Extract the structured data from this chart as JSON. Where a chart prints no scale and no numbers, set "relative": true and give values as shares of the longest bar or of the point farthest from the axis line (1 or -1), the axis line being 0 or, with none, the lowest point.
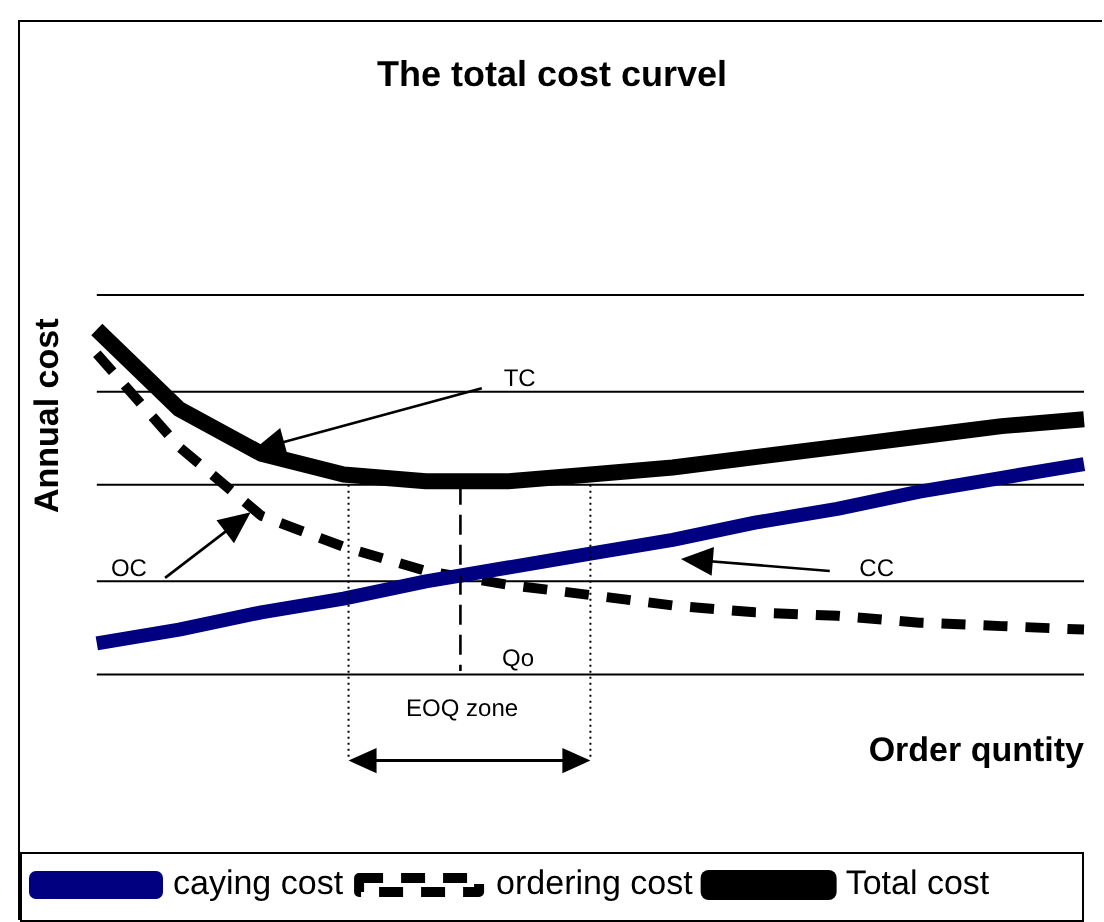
{
  "chart_data": {
    "type": "line",
    "title": "The total cost curvel",
    "xlabel": "Order quntity",
    "ylabel": "Annual cost",
    "relative": true,
    "ref_lines": [
      {
        "axis": "y",
        "value": 0,
        "color": "#000000"
      },
      {
        "axis": "y",
        "value": 0.27,
        "color": "#000000"
      },
      {
        "axis": "y",
        "value": 0.55,
        "color": "#000000"
      },
      {
        "axis": "y",
        "value": 0.82,
        "color": "#000000"
      },
      {
        "axis": "y",
        "value": 1.1,
        "color": "#000000"
      }
    ],
    "legend": "bottom",
    "marker": "none",
    "categories": [
      null,
      null,
      null,
      null,
      null,
      null,
      null,
      null,
      null,
      null,
      null,
      null,
      null
    ],
    "series": [
      {
        "name": "caying cost",
        "color": "#000080",
        "line_style": "solid",
        "values": [
          0.09,
          0.13,
          0.18,
          0.22,
          0.27,
          0.31,
          0.35,
          0.39,
          0.44,
          0.48,
          0.53,
          0.57,
          0.61
        ]
      },
      {
        "name": "ordering cost",
        "color": "#000000",
        "line_style": "dashed",
        "values": [
          0.93,
          0.66,
          0.46,
          0.37,
          0.3,
          0.26,
          0.23,
          0.2,
          0.18,
          0.17,
          0.15,
          0.14,
          0.13
        ]
      },
      {
        "name": "Total cost",
        "color": "#000000",
        "line_style": "solid",
        "values": [
          1.0,
          0.77,
          0.64,
          0.58,
          0.56,
          0.56,
          0.58,
          0.6,
          0.63,
          0.66,
          0.69,
          0.72,
          0.74
        ]
      }
    ],
    "annotations": [
      "TC",
      "OC",
      "CC",
      "Qo",
      "EOQ zone"
    ]
  }
}
